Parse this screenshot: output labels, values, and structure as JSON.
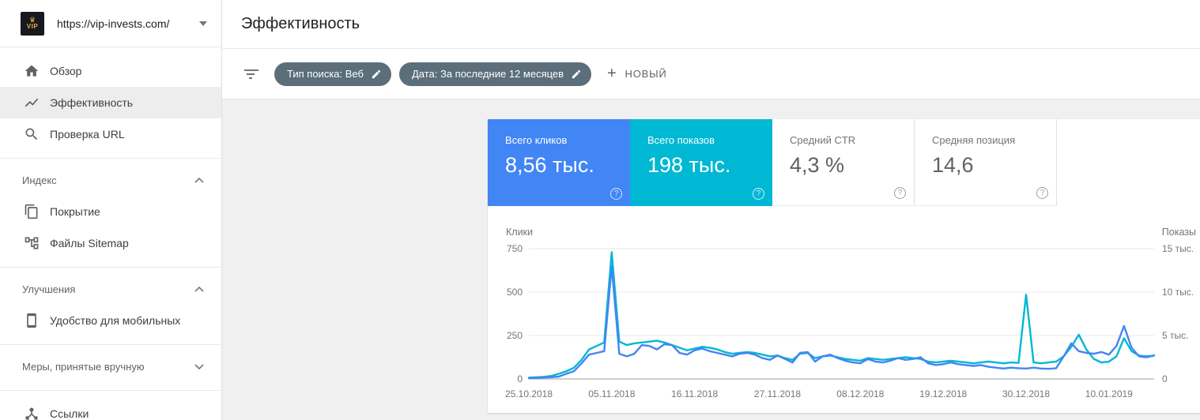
{
  "property": {
    "url": "https://vip-invests.com/",
    "favicon_text": "VIP",
    "favicon_crown": "♛"
  },
  "sidebar": {
    "overview": "Обзор",
    "performance": "Эффективность",
    "url_inspection": "Проверка URL",
    "index_section": "Индекс",
    "coverage": "Покрытие",
    "sitemaps": "Файлы Sitemap",
    "enhancements_section": "Улучшения",
    "mobile_usability": "Удобство для мобильных",
    "manual_actions": "Меры, принятые вручную",
    "links": "Ссылки"
  },
  "header": {
    "title": "Эффективность"
  },
  "filters": {
    "search_type": "Тип поиска: Веб",
    "date": "Дата: За последние 12 месяцев",
    "new_label": "НОВЫЙ",
    "plus": "+"
  },
  "cards": {
    "clicks": {
      "label": "Всего кликов",
      "value": "8,56 тыс."
    },
    "impressions": {
      "label": "Всего показов",
      "value": "198 тыс."
    },
    "ctr": {
      "label": "Средний CTR",
      "value": "4,3 %"
    },
    "position": {
      "label": "Средняя позиция",
      "value": "14,6"
    }
  },
  "icons": {
    "help": "?"
  },
  "colors": {
    "clicks_blue": "#4285f4",
    "impressions_teal": "#00b8d4",
    "chip_bg": "#5b6e7a",
    "grid": "#e8e8e8",
    "axis_base": "#9e9e9e",
    "tick_text": "#757575"
  },
  "chart_data": {
    "type": "line",
    "left_axis": {
      "label": "Клики",
      "max": 750,
      "tick_labels": [
        "750",
        "500",
        "250",
        "0"
      ]
    },
    "right_axis": {
      "label": "Показы",
      "max": 15000,
      "tick_labels": [
        "15 тыс.",
        "10 тыс.",
        "5 тыс.",
        "0"
      ]
    },
    "x_labels": [
      "25.10.2018",
      "05.11.2018",
      "16.11.2018",
      "27.11.2018",
      "08.12.2018",
      "19.12.2018",
      "30.12.2018",
      "10.01.2019"
    ],
    "x_label_days": [
      0,
      11,
      22,
      33,
      44,
      55,
      66,
      77
    ],
    "grid": true,
    "legend_position": "none",
    "series": [
      {
        "name": "Клики",
        "axis": "left",
        "color": "#4285f4",
        "values": [
          5,
          6,
          8,
          10,
          14,
          30,
          45,
          90,
          140,
          150,
          160,
          650,
          145,
          130,
          145,
          195,
          190,
          170,
          200,
          195,
          150,
          140,
          165,
          175,
          160,
          150,
          140,
          130,
          145,
          150,
          140,
          120,
          110,
          135,
          115,
          95,
          150,
          155,
          100,
          130,
          140,
          120,
          105,
          95,
          90,
          115,
          100,
          95,
          105,
          120,
          110,
          115,
          125,
          90,
          80,
          85,
          95,
          85,
          80,
          75,
          80,
          70,
          65,
          60,
          65,
          62,
          60,
          65,
          60,
          58,
          62,
          130,
          205,
          160,
          150,
          145,
          155,
          140,
          190,
          305,
          180,
          130,
          125,
          135
        ]
      },
      {
        "name": "Показы",
        "axis": "right",
        "color": "#00b8d4",
        "values": [
          150,
          200,
          250,
          350,
          600,
          900,
          1300,
          2200,
          3400,
          3800,
          4200,
          14600,
          4300,
          3900,
          4100,
          4200,
          4300,
          4400,
          4200,
          3900,
          3600,
          3300,
          3500,
          3700,
          3600,
          3400,
          3100,
          2900,
          3000,
          3100,
          3000,
          2800,
          2600,
          2700,
          2400,
          2200,
          2900,
          3000,
          2400,
          2600,
          2700,
          2500,
          2300,
          2200,
          2100,
          2400,
          2300,
          2200,
          2300,
          2400,
          2500,
          2400,
          2300,
          2000,
          1900,
          2000,
          2100,
          2000,
          1900,
          1800,
          1900,
          2000,
          1900,
          1800,
          1900,
          1850,
          9700,
          1900,
          1800,
          1900,
          2000,
          2600,
          3700,
          5100,
          3400,
          2300,
          1900,
          2000,
          2600,
          4700,
          3200,
          2700,
          2600,
          2700
        ]
      }
    ]
  }
}
